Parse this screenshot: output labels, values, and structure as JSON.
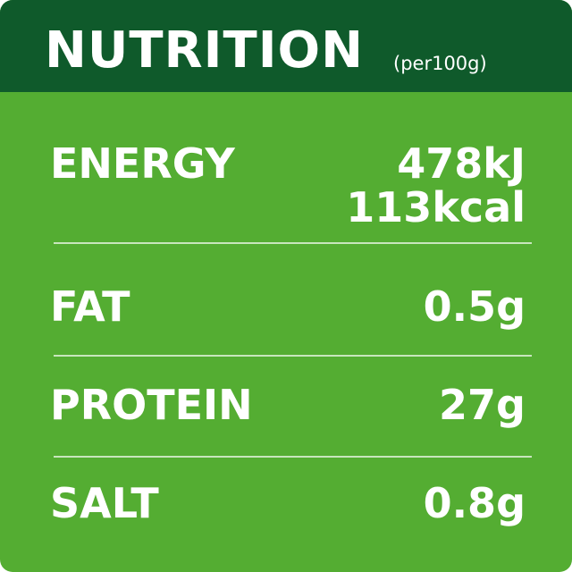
{
  "header": {
    "title": "NUTRITION",
    "subtitle": "(per100g)"
  },
  "table": {
    "rows": [
      {
        "label": "ENERGY",
        "values": [
          "478kJ",
          "113kcal"
        ]
      },
      {
        "label": "FAT",
        "values": [
          "0.5g"
        ]
      },
      {
        "label": "PROTEIN",
        "values": [
          "27g"
        ]
      },
      {
        "label": "SALT",
        "values": [
          "0.8g"
        ]
      }
    ]
  }
}
